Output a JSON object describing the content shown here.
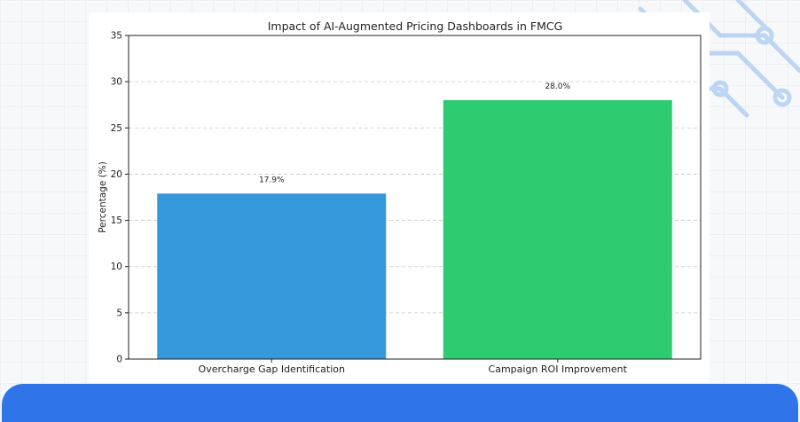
{
  "chart_data": {
    "type": "bar",
    "title": "Impact of AI-Augmented Pricing Dashboards in FMCG",
    "xlabel": "",
    "ylabel": "Percentage (%)",
    "categories": [
      "Overcharge Gap Identification",
      "Campaign ROI Improvement"
    ],
    "values": [
      17.9,
      28.0
    ],
    "value_labels": [
      "17.9%",
      "28.0%"
    ],
    "colors": [
      "#3498db",
      "#2ecc71"
    ],
    "ylim": [
      0,
      35
    ],
    "yticks": [
      0,
      5,
      10,
      15,
      20,
      25,
      30,
      35
    ],
    "grid": "y-dashed",
    "legend": "none"
  },
  "colors": {
    "background": "#f7f8fa",
    "panel": "#2f74e8",
    "decor": "#bcd5f2"
  }
}
